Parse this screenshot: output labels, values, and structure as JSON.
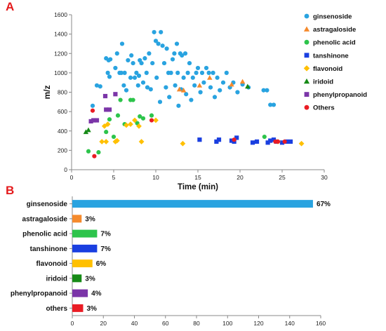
{
  "panels": {
    "a_label": "A",
    "b_label": "B"
  },
  "chart_data": [
    {
      "type": "scatter",
      "title": "",
      "xlabel": "Time (min)",
      "ylabel": "m/z",
      "xlim": [
        0,
        30
      ],
      "ylim": [
        0,
        1600
      ],
      "xticks": [
        0,
        5,
        10,
        15,
        20,
        25,
        30
      ],
      "yticks": [
        0,
        200,
        400,
        600,
        800,
        1000,
        1200,
        1400,
        1600
      ],
      "grid": false,
      "legend_position": "right",
      "series": [
        {
          "name": "ginsenoside",
          "color": "#29a3e0",
          "marker": "circle",
          "points": [
            [
              2.5,
              660
            ],
            [
              3.0,
              870
            ],
            [
              3.4,
              860
            ],
            [
              4.1,
              1150
            ],
            [
              4.3,
              1000
            ],
            [
              4.4,
              1130
            ],
            [
              4.6,
              1140
            ],
            [
              4.5,
              960
            ],
            [
              5.2,
              1050
            ],
            [
              5.4,
              1200
            ],
            [
              5.7,
              1000
            ],
            [
              5.9,
              1000
            ],
            [
              6.0,
              1300
            ],
            [
              6.2,
              870
            ],
            [
              6.3,
              1000
            ],
            [
              6.5,
              820
            ],
            [
              6.7,
              1130
            ],
            [
              7.0,
              950
            ],
            [
              7.1,
              1180
            ],
            [
              7.3,
              1100
            ],
            [
              7.5,
              950
            ],
            [
              7.7,
              1000
            ],
            [
              7.9,
              870
            ],
            [
              8.0,
              970
            ],
            [
              8.1,
              1130
            ],
            [
              8.3,
              1100
            ],
            [
              8.5,
              900
            ],
            [
              8.7,
              1150
            ],
            [
              8.9,
              1000
            ],
            [
              9.0,
              850
            ],
            [
              9.2,
              1200
            ],
            [
              9.4,
              830
            ],
            [
              9.6,
              1100
            ],
            [
              9.8,
              1420
            ],
            [
              10.0,
              1330
            ],
            [
              10.1,
              950
            ],
            [
              10.3,
              1300
            ],
            [
              10.5,
              700
            ],
            [
              10.6,
              1420
            ],
            [
              10.8,
              1280
            ],
            [
              11.0,
              1100
            ],
            [
              11.2,
              850
            ],
            [
              11.3,
              1250
            ],
            [
              11.5,
              1000
            ],
            [
              11.6,
              750
            ],
            [
              11.8,
              1000
            ],
            [
              12.0,
              1140
            ],
            [
              12.2,
              1200
            ],
            [
              12.3,
              870
            ],
            [
              12.5,
              1300
            ],
            [
              12.6,
              1000
            ],
            [
              12.7,
              660
            ],
            [
              12.9,
              1200
            ],
            [
              13.0,
              830
            ],
            [
              13.1,
              1180
            ],
            [
              13.3,
              950
            ],
            [
              13.5,
              1200
            ],
            [
              13.6,
              780
            ],
            [
              13.8,
              1000
            ],
            [
              14.0,
              1100
            ],
            [
              14.2,
              720
            ],
            [
              14.4,
              950
            ],
            [
              14.6,
              870
            ],
            [
              14.8,
              1000
            ],
            [
              15.0,
              1050
            ],
            [
              15.3,
              800
            ],
            [
              15.5,
              1000
            ],
            [
              15.7,
              900
            ],
            [
              16.0,
              1050
            ],
            [
              16.3,
              1000
            ],
            [
              16.5,
              850
            ],
            [
              16.8,
              1000
            ],
            [
              17.0,
              750
            ],
            [
              17.3,
              950
            ],
            [
              17.6,
              820
            ],
            [
              18.0,
              900
            ],
            [
              18.4,
              1000
            ],
            [
              18.8,
              850
            ],
            [
              19.2,
              900
            ],
            [
              19.7,
              800
            ],
            [
              20.3,
              880
            ],
            [
              21.0,
              850
            ],
            [
              22.8,
              820
            ],
            [
              23.2,
              820
            ],
            [
              23.6,
              670
            ],
            [
              24.0,
              670
            ]
          ]
        },
        {
          "name": "astragaloside",
          "color": "#f58a2c",
          "marker": "triangle",
          "points": [
            [
              12.8,
              830
            ],
            [
              13.3,
              820
            ],
            [
              15.2,
              870
            ],
            [
              16.4,
              950
            ],
            [
              19.0,
              880
            ],
            [
              20.3,
              910
            ]
          ]
        },
        {
          "name": "phenolic acid",
          "color": "#2dc44b",
          "marker": "circle",
          "points": [
            [
              2.0,
              190
            ],
            [
              3.2,
              180
            ],
            [
              4.1,
              390
            ],
            [
              4.5,
              520
            ],
            [
              5.0,
              340
            ],
            [
              5.5,
              560
            ],
            [
              5.8,
              720
            ],
            [
              6.3,
              470
            ],
            [
              7.0,
              720
            ],
            [
              7.3,
              720
            ],
            [
              7.8,
              480
            ],
            [
              8.1,
              550
            ],
            [
              8.5,
              530
            ],
            [
              9.5,
              560
            ],
            [
              22.9,
              340
            ]
          ]
        },
        {
          "name": "tanshinone",
          "color": "#1a3fe0",
          "marker": "square",
          "points": [
            [
              15.2,
              310
            ],
            [
              17.2,
              290
            ],
            [
              17.5,
              310
            ],
            [
              19.0,
              300
            ],
            [
              19.3,
              290
            ],
            [
              19.6,
              330
            ],
            [
              21.5,
              280
            ],
            [
              22.0,
              290
            ],
            [
              23.3,
              280
            ],
            [
              23.6,
              300
            ],
            [
              24.0,
              310
            ],
            [
              24.3,
              290
            ],
            [
              25.0,
              280
            ],
            [
              25.5,
              290
            ],
            [
              26.0,
              290
            ]
          ]
        },
        {
          "name": "flavonoid",
          "color": "#ffc000",
          "marker": "diamond",
          "points": [
            [
              3.6,
              290
            ],
            [
              3.9,
              450
            ],
            [
              4.1,
              290
            ],
            [
              4.3,
              470
            ],
            [
              5.2,
              290
            ],
            [
              5.4,
              300
            ],
            [
              6.5,
              460
            ],
            [
              7.0,
              470
            ],
            [
              7.5,
              510
            ],
            [
              8.0,
              450
            ],
            [
              8.3,
              290
            ],
            [
              10.0,
              510
            ],
            [
              13.2,
              270
            ],
            [
              24.5,
              290
            ],
            [
              27.3,
              270
            ]
          ]
        },
        {
          "name": "iridoid",
          "color": "#168a16",
          "marker": "triangle",
          "points": [
            [
              1.7,
              390
            ],
            [
              2.0,
              410
            ],
            [
              20.9,
              860
            ]
          ]
        },
        {
          "name": "phenylpropanoid",
          "color": "#7b35a8",
          "marker": "square",
          "points": [
            [
              2.3,
              500
            ],
            [
              2.6,
              510
            ],
            [
              3.0,
              510
            ],
            [
              4.0,
              760
            ],
            [
              4.5,
              620
            ],
            [
              5.2,
              780
            ],
            [
              4.1,
              620
            ]
          ]
        },
        {
          "name": "Others",
          "color": "#ea1c24",
          "marker": "circle",
          "points": [
            [
              2.5,
              610
            ],
            [
              2.7,
              140
            ],
            [
              9.5,
              510
            ],
            [
              19.3,
              310
            ],
            [
              24.2,
              290
            ],
            [
              24.5,
              290
            ],
            [
              25.3,
              290
            ]
          ]
        }
      ]
    },
    {
      "type": "bar",
      "orientation": "horizontal",
      "title": "",
      "xlabel": "",
      "ylabel": "",
      "xlim": [
        0,
        160
      ],
      "xticks": [
        0,
        20,
        40,
        60,
        80,
        100,
        120,
        140,
        160
      ],
      "grid": false,
      "categories": [
        "ginsenoside",
        "astragaloside",
        "phenolic acid",
        "tanshinone",
        "flavonoid",
        "iridoid",
        "phenylpropanoid",
        "others"
      ],
      "values": [
        155,
        6,
        16,
        16,
        13,
        6,
        10,
        7
      ],
      "labels": [
        "67%",
        "3%",
        "7%",
        "7%",
        "6%",
        "3%",
        "4%",
        "3%"
      ],
      "colors": [
        "#29a3e0",
        "#f58a2c",
        "#2dc44b",
        "#1a3fe0",
        "#ffc000",
        "#168a16",
        "#7b35a8",
        "#ea1c24"
      ]
    }
  ]
}
